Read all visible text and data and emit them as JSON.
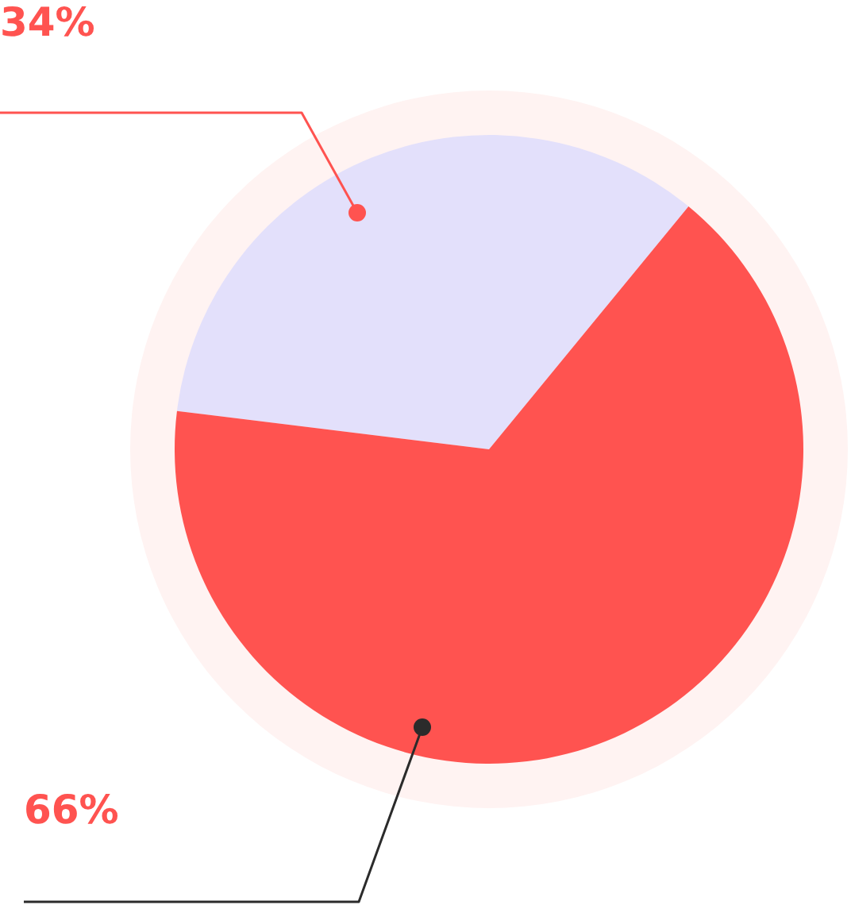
{
  "chart_data": {
    "type": "pie",
    "categories": [
      null,
      null
    ],
    "values": [
      34,
      66
    ],
    "colors": [
      "#e3e0fb",
      "#ff5350"
    ],
    "value_labels": [
      "34%",
      "66%"
    ],
    "legend": false
  }
}
